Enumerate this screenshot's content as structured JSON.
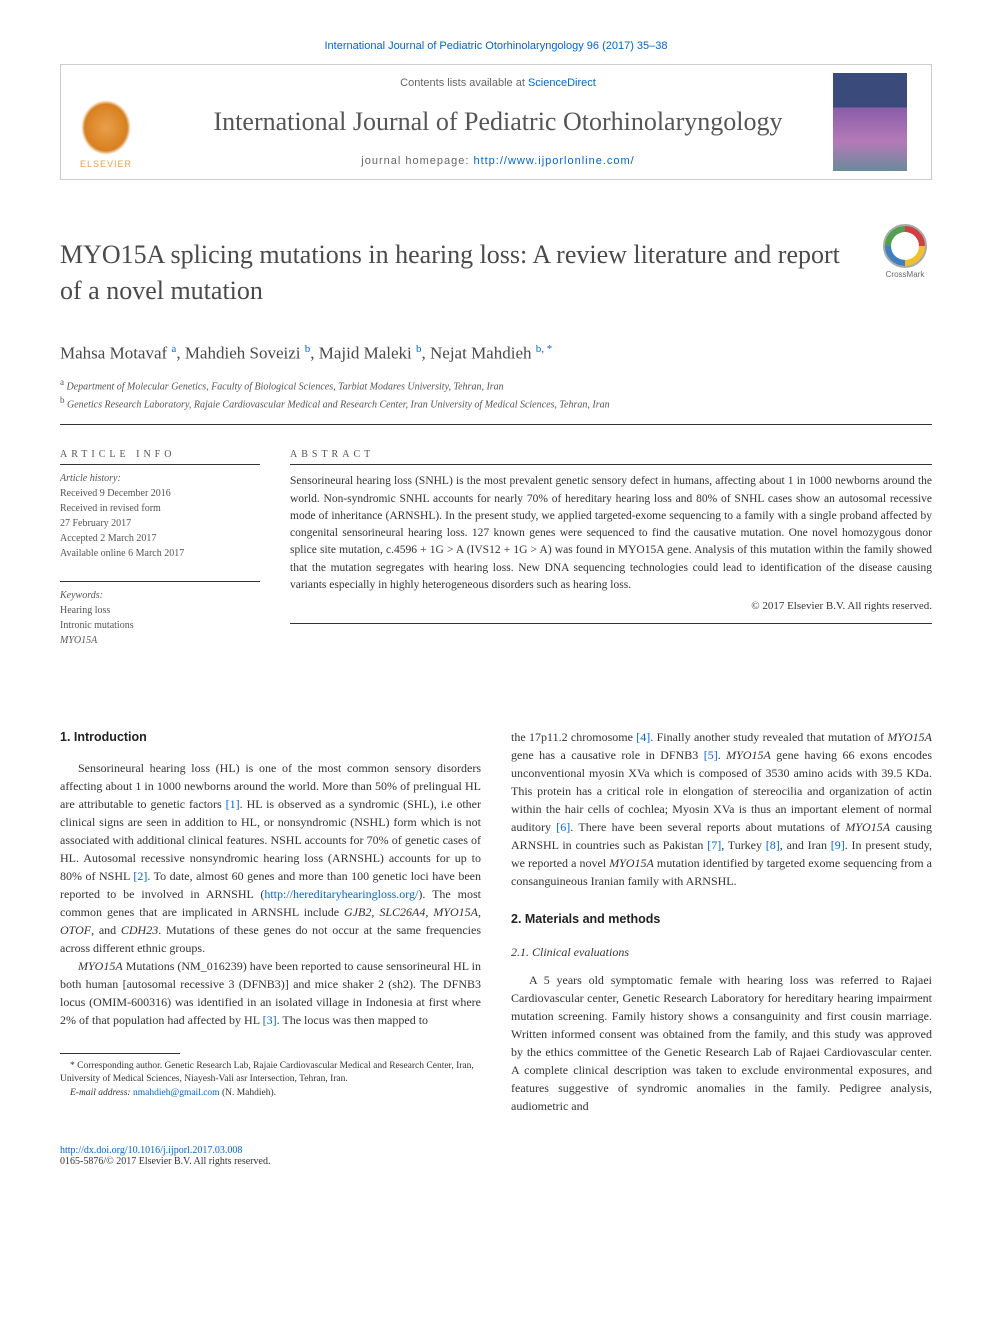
{
  "citation": "International Journal of Pediatric Otorhinolaryngology 96 (2017) 35–38",
  "header": {
    "contents_prefix": "Contents lists available at ",
    "contents_link": "ScienceDirect",
    "journal_name": "International Journal of Pediatric Otorhinolaryngology",
    "homepage_prefix": "journal homepage: ",
    "homepage_url": "http://www.ijporlonline.com/",
    "elsevier": "ELSEVIER"
  },
  "crossmark": "CrossMark",
  "title": "MYO15A splicing mutations in hearing loss: A review literature and report of a novel mutation",
  "authors_html": "Mahsa Motavaf <sup>a</sup>, Mahdieh Soveizi <sup>b</sup>, Majid Maleki <sup>b</sup>, Nejat Mahdieh <sup>b, *</sup>",
  "affiliations": {
    "a": "Department of Molecular Genetics, Faculty of Biological Sciences, Tarbiat Modares University, Tehran, Iran",
    "b": "Genetics Research Laboratory, Rajaie Cardiovascular Medical and Research Center, Iran University of Medical Sciences, Tehran, Iran"
  },
  "article_info": {
    "header": "ARTICLE INFO",
    "history_label": "Article history:",
    "history": [
      "Received 9 December 2016",
      "Received in revised form",
      "27 February 2017",
      "Accepted 2 March 2017",
      "Available online 6 March 2017"
    ],
    "keywords_label": "Keywords:",
    "keywords": [
      "Hearing loss",
      "Intronic mutations",
      "MYO15A"
    ]
  },
  "abstract": {
    "header": "ABSTRACT",
    "text": "Sensorineural hearing loss (SNHL) is the most prevalent genetic sensory defect in humans, affecting about 1 in 1000 newborns around the world. Non-syndromic SNHL accounts for nearly 70% of hereditary hearing loss and 80% of SNHL cases show an autosomal recessive mode of inheritance (ARNSHL). In the present study, we applied targeted-exome sequencing to a family with a single proband affected by congenital sensorineural hearing loss. 127 known genes were sequenced to find the causative mutation. One novel homozygous donor splice site mutation, c.4596 + 1G > A (IVS12 + 1G > A) was found in MYO15A gene. Analysis of this mutation within the family showed that the mutation segregates with hearing loss. New DNA sequencing technologies could lead to identification of the disease causing variants especially in highly heterogeneous disorders such as hearing loss.",
    "copyright": "© 2017 Elsevier B.V. All rights reserved."
  },
  "body": {
    "s1_heading": "1. Introduction",
    "s1_p1a": "Sensorineural hearing loss (HL) is one of the most common sensory disorders affecting about 1 in 1000 newborns around the world. More than 50% of prelingual HL are attributable to genetic factors ",
    "s1_ref1": "[1]",
    "s1_p1b": ". HL is observed as a syndromic (SHL), i.e other clinical signs are seen in addition to HL, or nonsyndromic (NSHL) form which is not associated with additional clinical features. NSHL accounts for 70% of genetic cases of HL. Autosomal recessive nonsyndromic hearing loss (ARNSHL) accounts for up to 80% of NSHL ",
    "s1_ref2": "[2]",
    "s1_p1c": ". To date, almost 60 genes and more than 100 genetic loci have been reported to be involved in ARNSHL (",
    "s1_url": "http://hereditaryhearingloss.org/",
    "s1_p1d": "). The most common genes that are implicated in ARNSHL include GJB2, SLC26A4, MYO15A, OTOF, and CDH23. Mutations of these genes do not occur at the same frequencies across different ethnic groups.",
    "s1_p2a": "MYO15A Mutations (NM_016239) have been reported to cause sensorineural HL in both human [autosomal recessive 3 (DFNB3)] and mice shaker 2 (sh2). The DFNB3 locus (OMIM-600316) was identified in an isolated village in Indonesia at first where 2% of that population had affected by HL ",
    "s1_ref3": "[3]",
    "s1_p2b": ". The locus was then mapped to ",
    "s1_p3a": "the 17p11.2 chromosome ",
    "s1_ref4": "[4]",
    "s1_p3b": ". Finally another study revealed that mutation of MYO15A gene has a causative role in DFNB3 ",
    "s1_ref5": "[5]",
    "s1_p3c": ". MYO15A gene having 66 exons encodes unconventional myosin XVa which is composed of 3530 amino acids with 39.5 KDa. This protein has a critical role in elongation of stereocilia and organization of actin within the hair cells of cochlea; Myosin XVa is thus an important element of normal auditory ",
    "s1_ref6": "[6]",
    "s1_p3d": ". There have been several reports about mutations of MYO15A causing ARNSHL in countries such as Pakistan ",
    "s1_ref7": "[7]",
    "s1_p3e": ", Turkey ",
    "s1_ref8": "[8]",
    "s1_p3f": ", and Iran ",
    "s1_ref9": "[9]",
    "s1_p3g": ". In present study, we reported a novel MYO15A mutation identified by targeted exome sequencing from a consanguineous Iranian family with ARNSHL.",
    "s2_heading": "2. Materials and methods",
    "s2_1_heading": "2.1. Clinical evaluations",
    "s2_1_p1": "A 5 years old symptomatic female with hearing loss was referred to Rajaei Cardiovascular center, Genetic Research Laboratory for hereditary hearing impairment mutation screening. Family history shows a consanguinity and first cousin marriage. Written informed consent was obtained from the family, and this study was approved by the ethics committee of the Genetic Research Lab of Rajaei Cardiovascular center. A complete clinical description was taken to exclude environmental exposures, and features suggestive of syndromic anomalies in the family. Pedigree analysis, audiometric and"
  },
  "footnotes": {
    "corresponding": "* Corresponding author. Genetic Research Lab, Rajaie Cardiovascular Medical and Research Center, Iran, University of Medical Sciences, Niayesh-Vali asr Intersection, Tehran, Iran.",
    "email_label": "E-mail address: ",
    "email": "nmahdieh@gmail.com",
    "email_suffix": " (N. Mahdieh)."
  },
  "footer": {
    "doi": "http://dx.doi.org/10.1016/j.ijporl.2017.03.008",
    "issn_line": "0165-5876/© 2017 Elsevier B.V. All rights reserved."
  },
  "colors": {
    "link": "#0066cc",
    "text": "#333333",
    "heading": "#4a4a4a",
    "rule": "#333333",
    "elsevier": "#e8a04a"
  }
}
